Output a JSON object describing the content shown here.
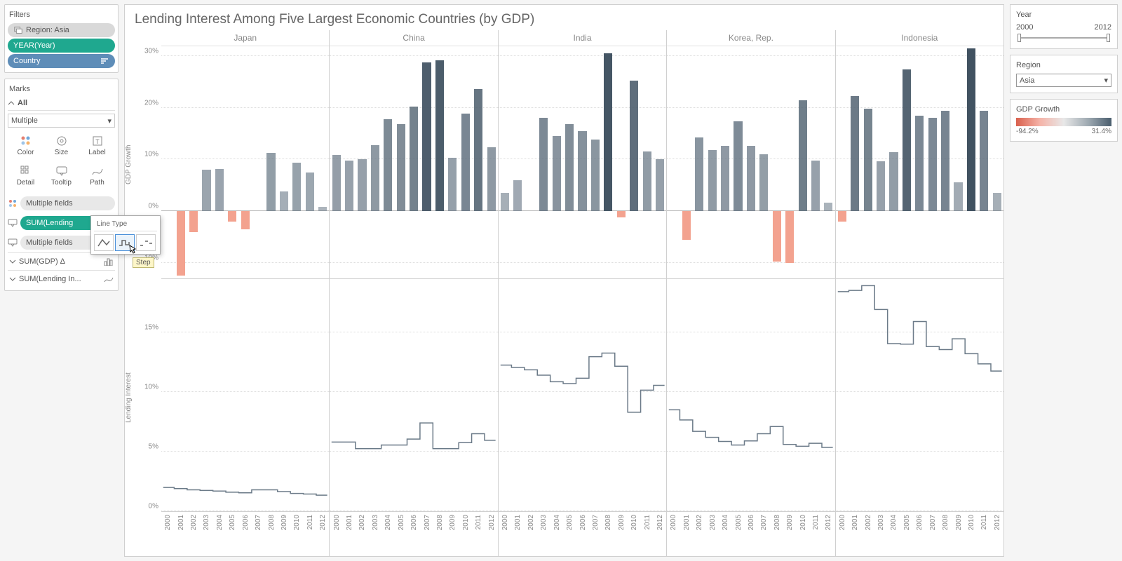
{
  "leftPanel": {
    "filtersTitle": "Filters",
    "regionPill": "Region: Asia",
    "yearPill": "YEAR(Year)",
    "countryPill": "Country",
    "marksTitle": "Marks",
    "allLabel": "All",
    "markTypeSelected": "Multiple",
    "markCells": [
      "Color",
      "Size",
      "Label",
      "Detail",
      "Tooltip",
      "Path"
    ],
    "shelfMulti1": "Multiple fields",
    "shelfSum": "SUM(Lending",
    "shelfMulti2": "Multiple fields",
    "axisGdp": "SUM(GDP)  Δ",
    "axisLending": "SUM(Lending In..."
  },
  "chart": {
    "title": "Lending Interest Among Five Largest Economic Countries (by GDP)",
    "countries": [
      "Japan",
      "China",
      "India",
      "Korea, Rep.",
      "Indonesia"
    ],
    "years": [
      2000,
      2001,
      2002,
      2003,
      2004,
      2005,
      2006,
      2007,
      2008,
      2009,
      2010,
      2011,
      2012
    ],
    "upper": {
      "ylabel": "GDP Growth",
      "ymin": -13,
      "ymax": 32,
      "ticks": [
        -10,
        0,
        10,
        20,
        30
      ],
      "tickLabels": [
        "-10%",
        "0%",
        "10%",
        "20%",
        "30%"
      ],
      "barWidth": 0.66,
      "series": {
        "Japan": [
          0,
          -12.5,
          -4,
          8,
          8.2,
          -2,
          -3.5,
          0,
          11.2,
          3.8,
          9.3,
          7.5,
          0.8
        ],
        "China": [
          10.8,
          9.8,
          10,
          12.8,
          17.8,
          16.8,
          20.2,
          28.8,
          29.2,
          10.3,
          18.8,
          23.6,
          12.4
        ],
        "India": [
          3.5,
          6,
          0,
          18,
          14.5,
          16.8,
          15.5,
          13.8,
          30.5,
          -1.2,
          25.2,
          11.6,
          10
        ],
        "Korea, Rep.": [
          0,
          -5.5,
          14.2,
          11.8,
          12.6,
          17.4,
          12.6,
          11,
          -9.8,
          -10,
          21.4,
          9.8,
          1.6
        ],
        "Indonesia": [
          -2,
          22.2,
          19.8,
          9.6,
          11.4,
          27.4,
          18.4,
          18,
          19.4,
          5.6,
          31.4,
          19.4,
          3.6
        ]
      },
      "barPosColor": "#6b7a88",
      "barNegColor": "#f3a28f",
      "maxDarkColor": "#3d4f5e"
    },
    "lower": {
      "ylabel": "Lending Interest",
      "ymin": 0,
      "ymax": 19.5,
      "ticks": [
        0,
        5,
        10,
        15
      ],
      "tickLabels": [
        "0%",
        "5%",
        "10%",
        "15%"
      ],
      "lineColor": "#6b7a88",
      "series": {
        "Japan": [
          2.05,
          1.95,
          1.85,
          1.8,
          1.75,
          1.65,
          1.6,
          1.85,
          1.85,
          1.7,
          1.55,
          1.5,
          1.4
        ],
        "China": [
          5.85,
          5.85,
          5.3,
          5.3,
          5.6,
          5.6,
          6.1,
          7.45,
          5.3,
          5.3,
          5.8,
          6.55,
          6.0
        ],
        "India": [
          12.3,
          12.1,
          11.9,
          11.45,
          10.9,
          10.75,
          11.2,
          13.0,
          13.3,
          12.2,
          8.35,
          10.2,
          10.6
        ],
        "Korea, Rep.": [
          8.55,
          7.7,
          6.75,
          6.25,
          5.9,
          5.6,
          5.95,
          6.55,
          7.15,
          5.65,
          5.5,
          5.75,
          5.4
        ],
        "Indonesia": [
          18.45,
          18.55,
          18.95,
          16.95,
          14.1,
          14.05,
          15.95,
          13.85,
          13.6,
          14.5,
          13.25,
          12.4,
          11.8
        ]
      }
    }
  },
  "popup": {
    "title": "Line Type",
    "tooltip": "Step"
  },
  "rightPanel": {
    "yearTitle": "Year",
    "yearMin": "2000",
    "yearMax": "2012",
    "regionTitle": "Region",
    "regionValue": "Asia",
    "gdpTitle": "GDP Growth",
    "gdpMin": "-94.2%",
    "gdpMax": "31.4%"
  }
}
